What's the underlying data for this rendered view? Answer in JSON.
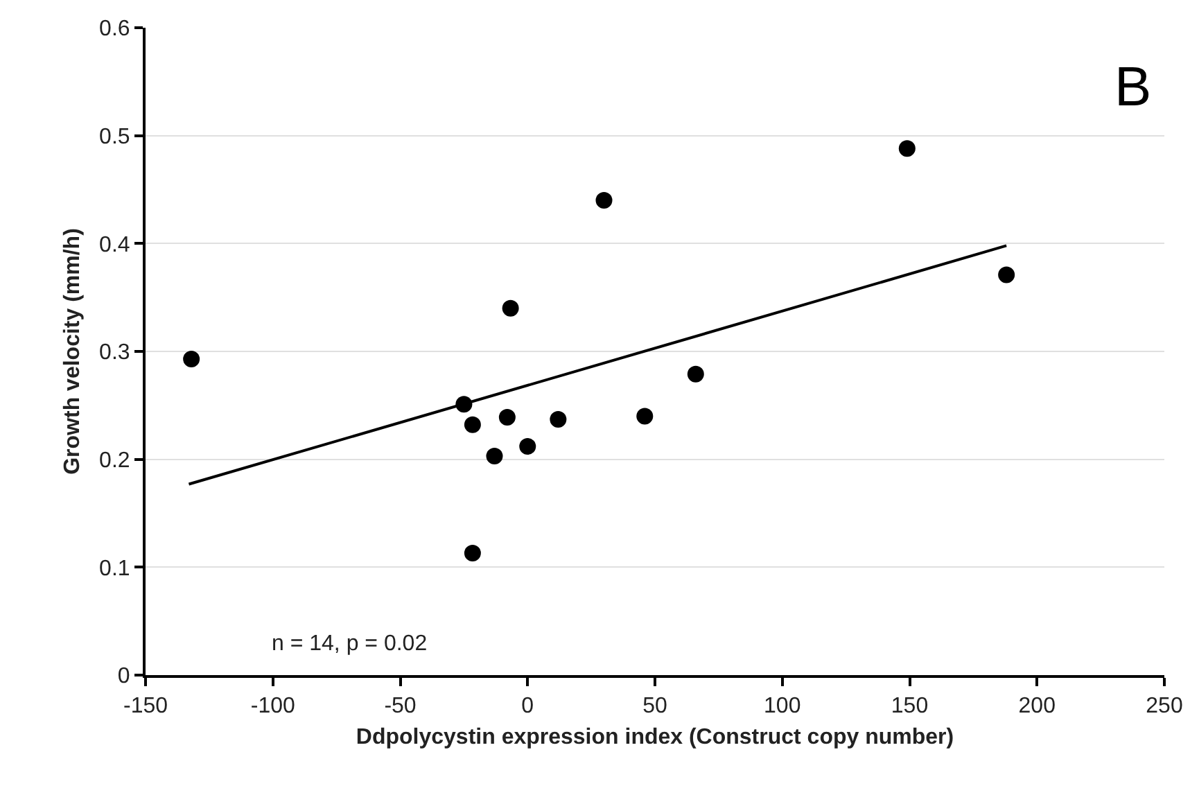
{
  "chart_data": {
    "type": "scatter",
    "xlabel": "Ddpolycystin expression index (Construct copy number)",
    "ylabel": "Growth velocity (mm/h)",
    "annotations": [
      "B",
      "n = 14, p = 0.02"
    ],
    "series": [
      {
        "marker": "circle",
        "color": "#000000",
        "x": [
          -132,
          -25,
          -21.6,
          -21.6,
          -13,
          -8,
          -6.7,
          0,
          12,
          30,
          46,
          66,
          149,
          188
        ],
        "values": [
          0.293,
          0.251,
          0.232,
          0.113,
          0.203,
          0.239,
          0.34,
          0.212,
          0.237,
          0.44,
          0.24,
          0.279,
          0.488,
          0.371
        ]
      },
      {
        "type": "line",
        "marker": "none",
        "color": "#000000",
        "x": [
          -133,
          188
        ],
        "values": [
          0.177,
          0.398
        ]
      }
    ],
    "xlim": [
      -150,
      250
    ],
    "xticks": [
      -150,
      -100,
      -50,
      0,
      50,
      100,
      150,
      200,
      250
    ],
    "ylim": [
      0,
      0.6
    ],
    "yticks": [
      0,
      0.1,
      0.2,
      0.3,
      0.4,
      0.5,
      0.6
    ],
    "grid": "y",
    "line_style": "solid",
    "legend": false
  }
}
